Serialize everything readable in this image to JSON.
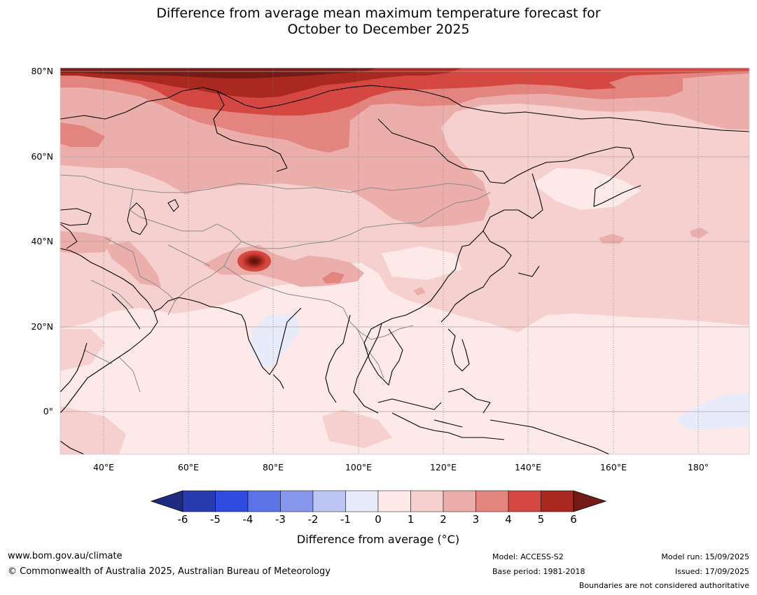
{
  "title": {
    "line1": "Difference from average mean maximum temperature forecast for",
    "line2": "October to December 2025"
  },
  "map": {
    "lat_labels": [
      "80°N",
      "60°N",
      "40°N",
      "20°N",
      "0°"
    ],
    "lon_labels": [
      "40°E",
      "60°E",
      "80°E",
      "100°E",
      "120°E",
      "140°E",
      "160°E",
      "180°"
    ],
    "lon_range": [
      30,
      192
    ],
    "lat_range": [
      -10,
      81
    ],
    "colors": {
      "anom_0_1": "#fce9e8",
      "anom_1_2": "#f5d0ce",
      "anom_2_3": "#ecaeab",
      "anom_3_4": "#e3847f",
      "anom_4_5": "#d54841",
      "anom_5_6": "#a92820",
      "anom_gt6": "#741b15",
      "anom_m1_0": "#e8ecfa",
      "coastline": "#000000",
      "borders": "#8a8a8a"
    }
  },
  "colorbar": {
    "ticks": [
      "-6",
      "-5",
      "-4",
      "-3",
      "-2",
      "-1",
      "0",
      "1",
      "2",
      "3",
      "4",
      "5",
      "6"
    ],
    "colors": [
      "#1e2b80",
      "#283bb0",
      "#2f4ce0",
      "#5b73e6",
      "#8797eb",
      "#bcc5f3",
      "#e8ecfa",
      "#fce9e8",
      "#f5d0ce",
      "#ecaeab",
      "#e3847f",
      "#d54841",
      "#a92820",
      "#741b15"
    ],
    "label": "Difference from average (°C)"
  },
  "footer": {
    "website": "www.bom.gov.au/climate",
    "copyright": "© Commonwealth of Australia 2025, Australian Bureau of Meteorology",
    "model": "Model: ACCESS-S2",
    "base_period": "Base period: 1981-2018",
    "model_run": "Model run: 15/09/2025",
    "issued": "Issued: 17/09/2025",
    "disclaimer": "Boundaries are not considered authoritative"
  }
}
